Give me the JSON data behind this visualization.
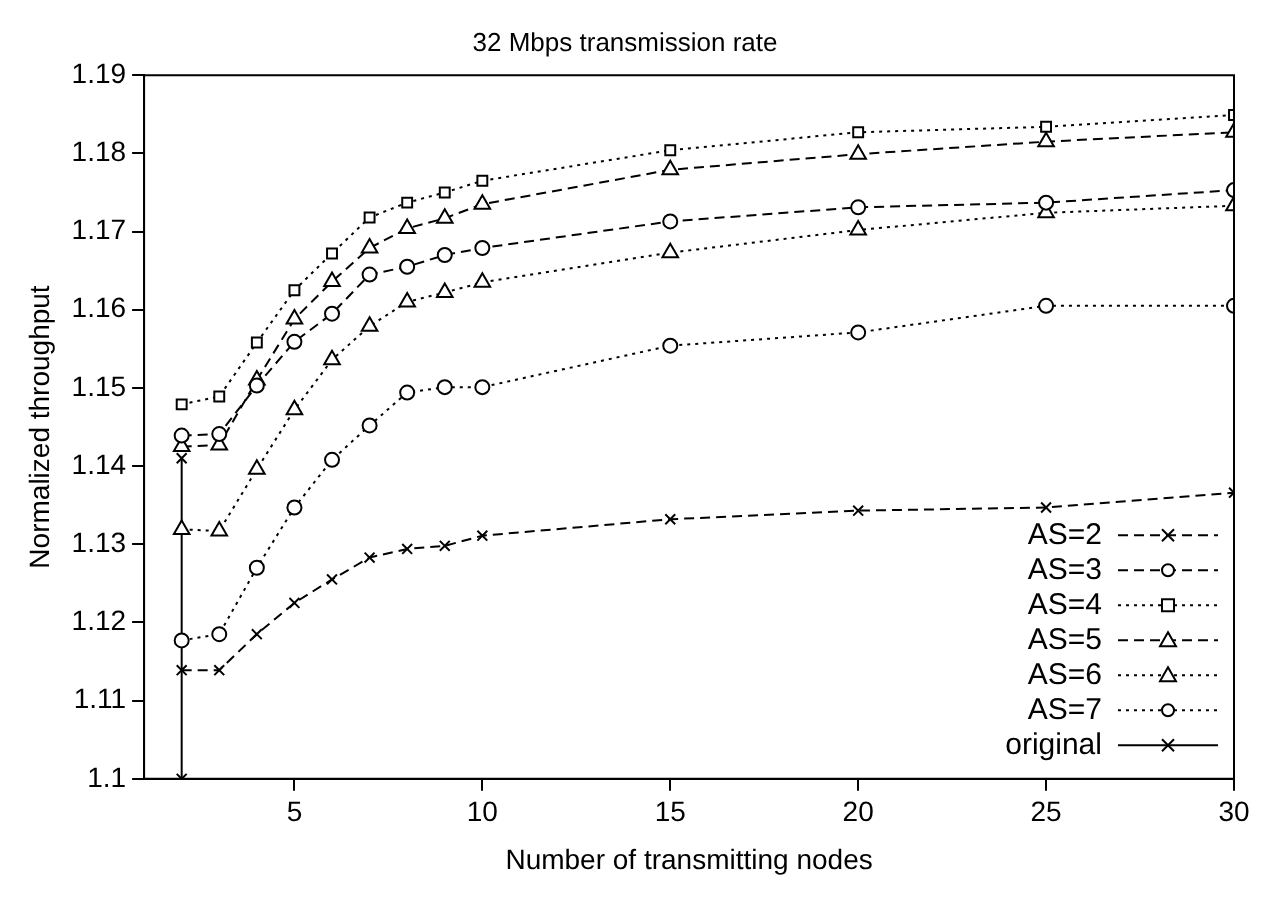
{
  "chart_data": {
    "type": "line",
    "title": "32 Mbps transmission rate",
    "xlabel": "Number of transmitting nodes",
    "ylabel": "Normalized throughput",
    "xlim": [
      1,
      30
    ],
    "xticks": [
      5,
      10,
      15,
      20,
      25,
      30
    ],
    "ylim": [
      1.1,
      1.19
    ],
    "yticks": [
      1.1,
      1.11,
      1.12,
      1.13,
      1.14,
      1.15,
      1.16,
      1.17,
      1.18,
      1.19
    ],
    "grid": false,
    "legend": "bottom right",
    "x": [
      2,
      3,
      4,
      5,
      6,
      7,
      8,
      9,
      10,
      15,
      20,
      25,
      30
    ],
    "series": [
      {
        "name": "AS=2",
        "color": "#000000",
        "marker": "cross",
        "line_style": "dashed",
        "values": [
          1.1139,
          1.1139,
          1.1185,
          1.1225,
          1.1255,
          1.1283,
          1.1294,
          1.1298,
          1.1311,
          1.1332,
          1.1343,
          1.1347,
          1.1366
        ]
      },
      {
        "name": "AS=3",
        "color": "#000000",
        "marker": "circle",
        "line_style": "dashed",
        "values": [
          1.1439,
          1.1441,
          1.1503,
          1.1559,
          1.1595,
          1.1645,
          1.1655,
          1.167,
          1.1679,
          1.1713,
          1.1731,
          1.1737,
          1.1753
        ]
      },
      {
        "name": "AS=4",
        "color": "#000000",
        "marker": "square",
        "line_style": "dotted",
        "values": [
          1.1479,
          1.1489,
          1.1558,
          1.1625,
          1.1672,
          1.1718,
          1.1737,
          1.175,
          1.1765,
          1.1804,
          1.1827,
          1.1834,
          1.1849
        ]
      },
      {
        "name": "AS=5",
        "color": "#000000",
        "marker": "triangle",
        "line_style": "dashed",
        "values": [
          1.1425,
          1.1427,
          1.151,
          1.1588,
          1.1636,
          1.1679,
          1.1704,
          1.1717,
          1.1735,
          1.1779,
          1.1799,
          1.1815,
          1.1827
        ]
      },
      {
        "name": "AS=6",
        "color": "#000000",
        "marker": "triangle",
        "line_style": "dotted",
        "values": [
          1.1319,
          1.1317,
          1.1396,
          1.1472,
          1.1536,
          1.1579,
          1.161,
          1.1622,
          1.1635,
          1.1673,
          1.1702,
          1.1724,
          1.1733
        ]
      },
      {
        "name": "AS=7",
        "color": "#000000",
        "marker": "circle",
        "line_style": "dotted",
        "values": [
          1.1177,
          1.1185,
          1.127,
          1.1347,
          1.1408,
          1.1452,
          1.1494,
          1.1501,
          1.1501,
          1.1554,
          1.1571,
          1.1605,
          1.1605
        ]
      },
      {
        "name": "original",
        "color": "#000000",
        "marker": "cross",
        "line_style": "solid",
        "x": [
          2,
          2
        ],
        "values": [
          1.1,
          1.141
        ]
      }
    ]
  }
}
